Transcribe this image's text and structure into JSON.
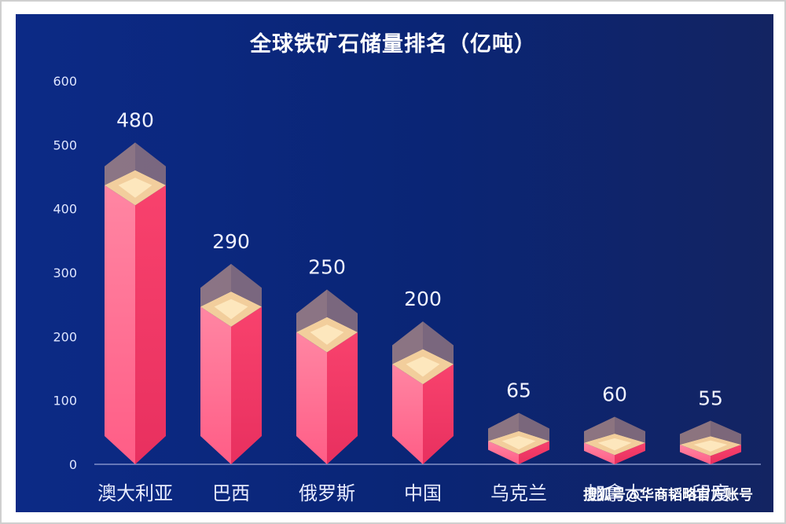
{
  "chart_data": {
    "type": "bar",
    "title": "全球铁矿石储量排名（亿吨）",
    "categories": [
      "澳大利亚",
      "巴西",
      "俄罗斯",
      "中国",
      "乌克兰",
      "加拿大",
      "印度"
    ],
    "values": [
      480,
      290,
      250,
      200,
      65,
      60,
      55
    ],
    "xlabel": "",
    "ylabel": "",
    "ylim": [
      0,
      600
    ],
    "yticks": [
      0,
      100,
      200,
      300,
      400,
      500,
      600
    ],
    "grid": false,
    "colors": {
      "bar_left": "#ff7a9a",
      "bar_right": "#f0456f",
      "cap_top": "#ffe0a0",
      "background": "#0c2a86"
    }
  },
  "watermark": "搜狐号@华商韬略官方账号"
}
